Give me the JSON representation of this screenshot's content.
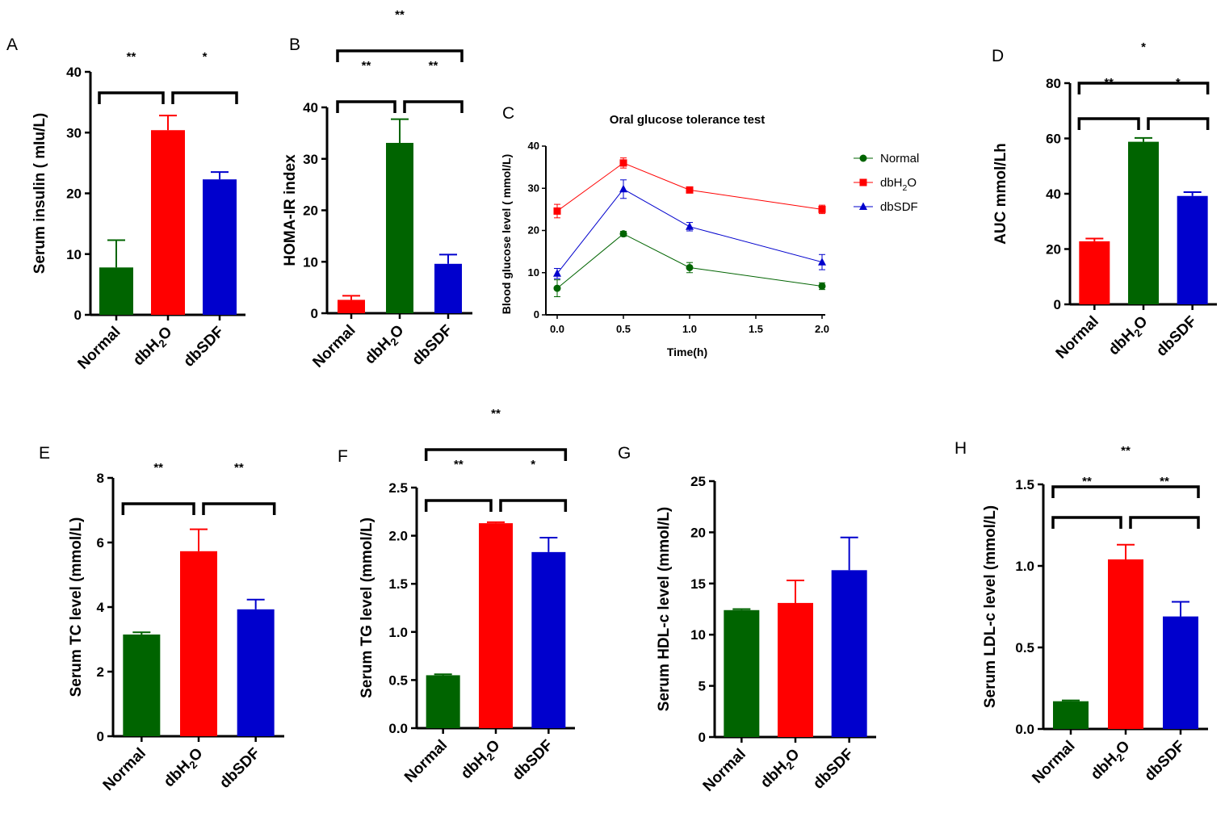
{
  "colors": {
    "green": "#006400",
    "red": "#ff0000",
    "blue": "#0000cd",
    "black": "#000000"
  },
  "chart_data": [
    {
      "id": "A",
      "type": "bar",
      "panel_label": "A",
      "ylabel": "Serum insulin ( mIu/L)",
      "ylim": [
        0,
        40
      ],
      "yticks": [
        0,
        10,
        20,
        30,
        40
      ],
      "categories": [
        "Normal",
        "dbH2O",
        "dbSDF"
      ],
      "values": [
        7.8,
        30.4,
        22.3
      ],
      "errors": [
        4.5,
        2.4,
        1.2
      ],
      "colors": [
        "#006400",
        "#ff0000",
        "#0000cd"
      ],
      "fill": "solid",
      "brackets": [
        {
          "from": 0,
          "to": 1,
          "label": "**",
          "level": 0
        },
        {
          "from": 1,
          "to": 2,
          "label": "*",
          "level": 0
        }
      ]
    },
    {
      "id": "B",
      "type": "bar",
      "panel_label": "B",
      "ylabel": "HOMA-IR index",
      "ylim": [
        0,
        40
      ],
      "yticks": [
        0,
        10,
        20,
        30,
        40
      ],
      "categories": [
        "Normal",
        "dbH2O",
        "dbSDF"
      ],
      "values": [
        2.6,
        33.1,
        9.6
      ],
      "errors": [
        0.8,
        4.6,
        1.8
      ],
      "colors": [
        "#ff0000",
        "#006400",
        "#0000cd"
      ],
      "fill": "solid",
      "brackets": [
        {
          "from": 0,
          "to": 1,
          "label": "**",
          "level": 0
        },
        {
          "from": 1,
          "to": 2,
          "label": "**",
          "level": 0
        },
        {
          "from": 0,
          "to": 2,
          "label": "**",
          "level": 1
        }
      ]
    },
    {
      "id": "C",
      "type": "line",
      "panel_label": "C",
      "title": "Oral glucose tolerance test",
      "xlabel": "Time(h)",
      "ylabel": "Blood glucose level ( mmol/L)",
      "xlim": [
        0,
        2.0
      ],
      "ylim": [
        0,
        40
      ],
      "xticks": [
        "0.0",
        "0.5",
        "1.0",
        "1.5",
        "2.0"
      ],
      "yticks": [
        0,
        10,
        20,
        30,
        40
      ],
      "x": [
        0,
        0.5,
        1.0,
        2.0
      ],
      "series": [
        {
          "name": "Normal",
          "color": "#006400",
          "marker": "circle",
          "values": [
            6.3,
            19.2,
            11.2,
            6.8
          ],
          "errors": [
            2.0,
            0.6,
            1.2,
            0.8
          ]
        },
        {
          "name": "dbH2O",
          "color": "#ff0000",
          "marker": "square",
          "values": [
            24.6,
            36.0,
            29.6,
            25.0
          ],
          "errors": [
            1.6,
            1.2,
            0.5,
            1.0
          ]
        },
        {
          "name": "dbSDF",
          "color": "#0000cd",
          "marker": "triangle",
          "values": [
            9.8,
            29.8,
            20.9,
            12.5
          ],
          "errors": [
            1.2,
            2.2,
            1.0,
            1.8
          ]
        }
      ]
    },
    {
      "id": "D",
      "type": "bar",
      "panel_label": "D",
      "ylabel": "AUC mmol/Lh",
      "ylim": [
        0,
        80
      ],
      "yticks": [
        0,
        20,
        40,
        60,
        80
      ],
      "categories": [
        "Normal",
        "dbH2O",
        "dbSDF"
      ],
      "values": [
        22.8,
        58.8,
        39.2
      ],
      "errors": [
        1.0,
        1.4,
        1.4
      ],
      "colors": [
        "#ff0000",
        "#006400",
        "#0000cd"
      ],
      "fill": "solid",
      "brackets": [
        {
          "from": 0,
          "to": 1,
          "label": "**",
          "level": 0
        },
        {
          "from": 1,
          "to": 2,
          "label": "*",
          "level": 0
        },
        {
          "from": 0,
          "to": 2,
          "label": "*",
          "level": 1
        }
      ]
    },
    {
      "id": "E",
      "type": "bar",
      "panel_label": "E",
      "ylabel": "Serum TC level (mmol/L)",
      "ylim": [
        0,
        8
      ],
      "yticks": [
        0,
        2,
        4,
        6,
        8
      ],
      "categories": [
        "Normal",
        "dbH2O",
        "dbSDF"
      ],
      "values": [
        3.15,
        5.73,
        3.93
      ],
      "errors": [
        0.07,
        0.68,
        0.3
      ],
      "colors": [
        "#006400",
        "#ff0000",
        "#0000cd"
      ],
      "fill": "solid",
      "brackets": [
        {
          "from": 0,
          "to": 1,
          "label": "**",
          "level": 0
        },
        {
          "from": 1,
          "to": 2,
          "label": "**",
          "level": 0
        }
      ]
    },
    {
      "id": "F",
      "type": "bar",
      "panel_label": "F",
      "ylabel": "Serum TG level (mmol/L)",
      "ylim": [
        0,
        2.5
      ],
      "yticks": [
        "0.0",
        "0.5",
        "1.0",
        "1.5",
        "2.0",
        "2.5"
      ],
      "categories": [
        "Normal",
        "dbH2O",
        "dbSDF"
      ],
      "values": [
        0.55,
        2.13,
        1.83
      ],
      "errors": [
        0.01,
        0.01,
        0.15
      ],
      "colors": [
        "#006400",
        "#ff0000",
        "#0000cd"
      ],
      "fill": "solid",
      "brackets": [
        {
          "from": 0,
          "to": 1,
          "label": "**",
          "level": 0
        },
        {
          "from": 1,
          "to": 2,
          "label": "*",
          "level": 0
        },
        {
          "from": 0,
          "to": 2,
          "label": "**",
          "level": 1
        }
      ]
    },
    {
      "id": "G",
      "type": "bar",
      "panel_label": "G",
      "ylabel": "Serum HDL-c level (mmol/L)",
      "ylim": [
        0,
        25
      ],
      "yticks": [
        0,
        5,
        10,
        15,
        20,
        25
      ],
      "categories": [
        "Normal",
        "dbH2O",
        "dbSDF"
      ],
      "values": [
        12.4,
        13.1,
        16.3
      ],
      "errors": [
        0.1,
        2.2,
        3.2
      ],
      "colors": [
        "#006400",
        "#ff0000",
        "#0000cd"
      ],
      "fill": "solid",
      "brackets": []
    },
    {
      "id": "H",
      "type": "bar",
      "panel_label": "H",
      "ylabel": "Serum LDL-c level (mmol/L)",
      "ylim": [
        0,
        1.5
      ],
      "yticks": [
        "0.0",
        "0.5",
        "1.0",
        "1.5"
      ],
      "categories": [
        "Normal",
        "dbH2O",
        "dbSDF"
      ],
      "values": [
        0.17,
        1.04,
        0.69
      ],
      "errors": [
        0.005,
        0.09,
        0.09
      ],
      "colors": [
        "#006400",
        "#ff0000",
        "#0000cd"
      ],
      "fill": "solid",
      "brackets": [
        {
          "from": 0,
          "to": 1,
          "label": "**",
          "level": 0
        },
        {
          "from": 1,
          "to": 2,
          "label": "**",
          "level": 0
        },
        {
          "from": 0,
          "to": 2,
          "label": "**",
          "level": 1
        }
      ]
    }
  ]
}
